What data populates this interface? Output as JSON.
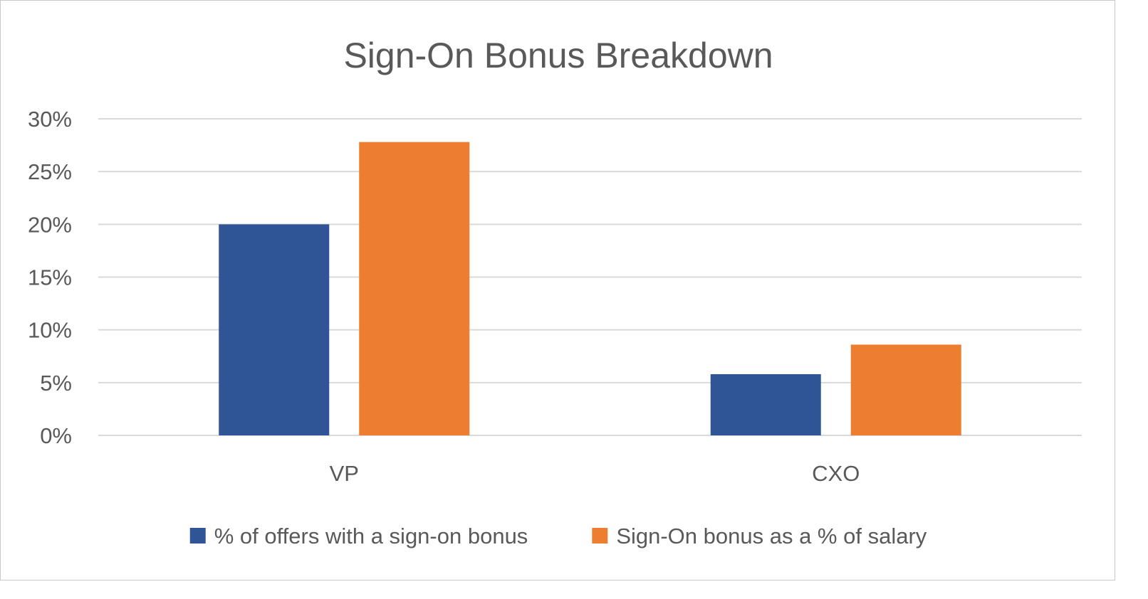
{
  "chart_data": {
    "type": "bar",
    "title": "Sign-On Bonus Breakdown",
    "xlabel": "",
    "ylabel": "",
    "categories": [
      "VP",
      "CXO"
    ],
    "series": [
      {
        "name": "% of offers with a sign-on bonus",
        "values": [
          20.0,
          5.8
        ],
        "color": "#2f5597"
      },
      {
        "name": "Sign-On bonus as a % of salary",
        "values": [
          27.8,
          8.6
        ],
        "color": "#ed7d31"
      }
    ],
    "ylim": [
      0,
      30
    ],
    "yticks": [
      0,
      5,
      10,
      15,
      20,
      25,
      30
    ],
    "ytick_labels": [
      "0%",
      "5%",
      "10%",
      "15%",
      "20%",
      "25%",
      "30%"
    ],
    "grid": true,
    "legend_position": "bottom"
  }
}
